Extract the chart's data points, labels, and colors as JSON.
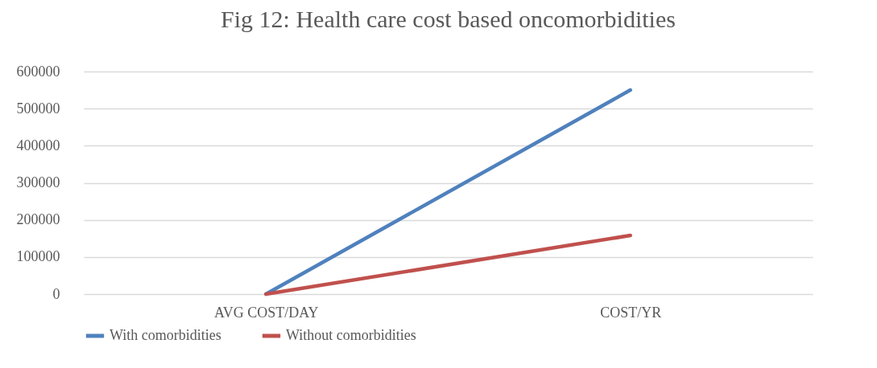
{
  "chart_data": {
    "type": "line",
    "title": "Fig 12: Health care cost based oncomorbidities",
    "categories": [
      "AVG COST/DAY",
      "COST/YR"
    ],
    "series": [
      {
        "name": "With comorbidities",
        "color": "#4f81bd",
        "values": [
          0,
          550000
        ]
      },
      {
        "name": "Without comorbidities",
        "color": "#c0504d",
        "values": [
          0,
          158000
        ]
      }
    ],
    "ylim": [
      0,
      600000
    ],
    "yticks": [
      0,
      100000,
      200000,
      300000,
      400000,
      500000,
      600000
    ],
    "grid": "y",
    "legend": "bottom",
    "marker": "none",
    "line_style": "solid"
  }
}
